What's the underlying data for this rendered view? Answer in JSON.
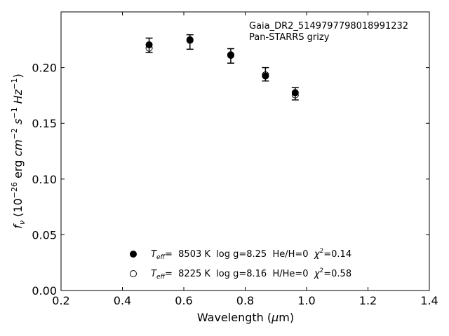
{
  "chart_data": {
    "type": "scatter",
    "title": "",
    "xlabel": "Wavelength (μm)",
    "ylabel": "f_ν (10^-26 erg cm^-2 s^-1 Hz^-1)",
    "xlim": [
      0.2,
      1.4
    ],
    "ylim": [
      0.0,
      0.25
    ],
    "x_ticks": [
      0.2,
      0.4,
      0.6,
      0.8,
      1.0,
      1.2,
      1.4
    ],
    "x_tick_labels": [
      "0.2",
      "0.4",
      "0.6",
      "0.8",
      "1.0",
      "1.2",
      "1.4"
    ],
    "y_ticks": [
      0.0,
      0.05,
      0.1,
      0.15,
      0.2
    ],
    "y_tick_labels": [
      "0.00",
      "0.05",
      "0.10",
      "0.15",
      "0.20"
    ],
    "grid": false,
    "annotation": {
      "line1": "Gaia_DR2_5149797798018991232",
      "line2": "Pan-STARRS grizy"
    },
    "observed": {
      "x": [
        0.487,
        0.62,
        0.753,
        0.866,
        0.963
      ],
      "y": [
        0.22,
        0.223,
        0.2105,
        0.194,
        0.1765
      ],
      "err": [
        0.0065,
        0.0065,
        0.0065,
        0.006,
        0.0055
      ]
    },
    "series": [
      {
        "name": "Teff= 8503 K log g=8.25 He/H=0 χ²=0.14",
        "marker": "filled-circle",
        "x": [
          0.487,
          0.62,
          0.753,
          0.866,
          0.963
        ],
        "y": [
          0.2205,
          0.2245,
          0.211,
          0.1925,
          0.1775
        ]
      },
      {
        "name": "Teff= 8225 K log g=8.16 H/He=0 χ²=0.58",
        "marker": "open-circle",
        "x": [
          0.487,
          0.62,
          0.753,
          0.866,
          0.963
        ],
        "y": [
          0.2175,
          0.225,
          0.2115,
          0.1935,
          0.1755
        ]
      }
    ],
    "legend": {
      "placement": "lower-center",
      "entries": [
        {
          "teff_label": "T",
          "teff_sub": "eff",
          "text": "=  8503 K  log g=8.25  He/H=0  ",
          "chi": "χ",
          "chi_sup": "2",
          "chi_val": "=0.14"
        },
        {
          "teff_label": "T",
          "teff_sub": "eff",
          "text": "=  8225 K  log g=8.16  H/He=0  ",
          "chi": "χ",
          "chi_sup": "2",
          "chi_val": "=0.58"
        }
      ]
    }
  }
}
